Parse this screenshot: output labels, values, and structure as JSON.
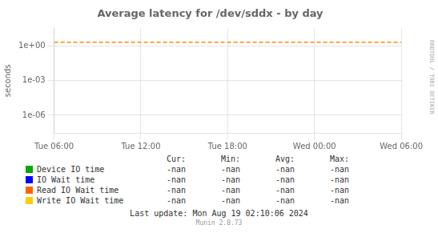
{
  "chart_data": {
    "type": "line",
    "title": "Average latency for /dev/sddx - by day",
    "y_label": "seconds",
    "categories": [
      "Tue 06:00",
      "Tue 12:00",
      "Tue 18:00",
      "Wed 00:00",
      "Wed 06:00"
    ],
    "series": [
      {
        "values": [
          2.0,
          2.0,
          2.0,
          2.0,
          2.0
        ],
        "color": "#ff8800",
        "line_style": "dashed"
      },
      {
        "name": "Device IO time",
        "color": "#00aa00",
        "values": [
          null,
          null,
          null,
          null,
          null
        ],
        "legend_values": [
          "-nan",
          "-nan",
          "-nan",
          "-nan"
        ]
      },
      {
        "name": "IO Wait time",
        "color": "#0000ff",
        "values": [
          null,
          null,
          null,
          null,
          null
        ],
        "legend_values": [
          "-nan",
          "-nan",
          "-nan",
          "-nan"
        ]
      },
      {
        "name": "Read IO Wait time",
        "color": "#ff6600",
        "values": [
          null,
          null,
          null,
          null,
          null
        ],
        "legend_values": [
          "-nan",
          "-nan",
          "-nan",
          "-nan"
        ]
      },
      {
        "name": "Write IO Wait time",
        "color": "#ffcc00",
        "values": [
          null,
          null,
          null,
          null,
          null
        ],
        "legend_values": [
          "-nan",
          "-nan",
          "-nan",
          "-nan"
        ]
      }
    ],
    "legend_columns": [
      "Cur:",
      "Min:",
      "Avg:",
      "Max:"
    ],
    "log": "y",
    "ylim": [
      3e-08,
      30
    ],
    "yticks": [
      {
        "value": 1e-06,
        "label": "1e-06"
      },
      {
        "value": 0.001,
        "label": "1e-03"
      },
      {
        "value": 1,
        "label": "1e+00"
      }
    ],
    "grid": true,
    "legend": "bottom",
    "annotations": [
      "Last update: Mon Aug 19 02:10:06 2024",
      "Munin 2.0.73",
      "RRDTOOL / TOBI OETIKER"
    ]
  }
}
